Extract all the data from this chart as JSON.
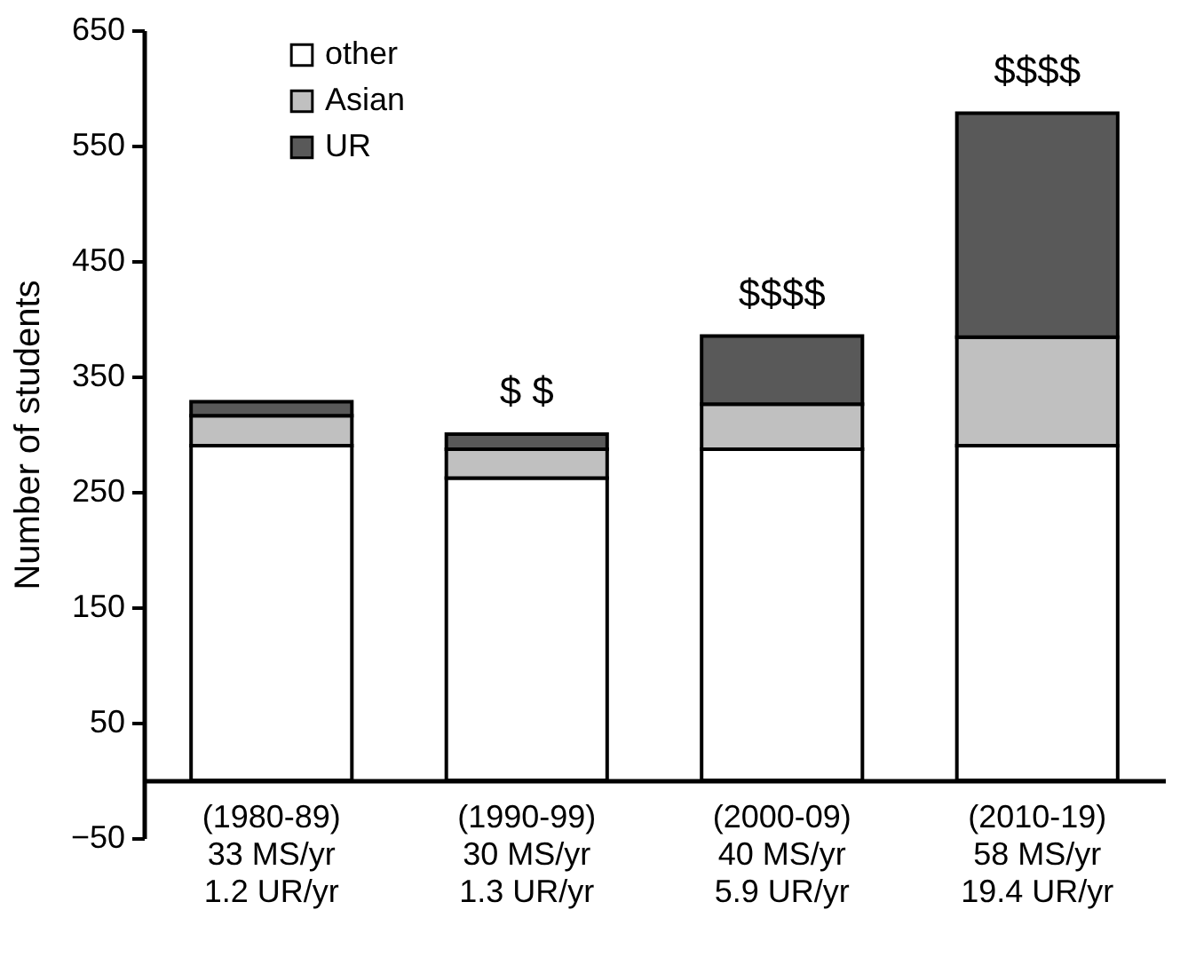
{
  "chart_data": {
    "type": "bar",
    "stacked": true,
    "ylabel": "Number of students",
    "categories": [
      "(1980-89)\n33 MS/yr\n1.2 UR/yr",
      "(1990-99)\n30 MS/yr\n1.3 UR/yr",
      "(2000-09)\n40 MS/yr\n5.9 UR/yr",
      "(2010-19)\n58 MS/yr\n19.4 UR/yr"
    ],
    "series": [
      {
        "name": "other",
        "color": "#ffffff",
        "values": [
          290,
          262,
          287,
          290
        ]
      },
      {
        "name": "Asian",
        "color": "#c0c0c0",
        "values": [
          26,
          25,
          39,
          94
        ]
      },
      {
        "name": "UR",
        "color": "#595959",
        "values": [
          12,
          13,
          59,
          194
        ]
      }
    ],
    "ylim": [
      -50,
      650
    ],
    "yticks": [
      -50,
      50,
      150,
      250,
      350,
      450,
      550,
      650
    ],
    "annotations": [
      {
        "text": "$  $",
        "x": "(1990-99)\n30 MS/yr\n1.3 UR/yr",
        "y": 300
      },
      {
        "text": "$$$$",
        "x": "(2000-09)\n40 MS/yr\n5.9 UR/yr",
        "y": 385
      },
      {
        "text": "$$$$",
        "x": "(2010-19)\n58 MS/yr\n19.4 UR/yr",
        "y": 578
      }
    ],
    "legend": "top left",
    "grid": false
  }
}
